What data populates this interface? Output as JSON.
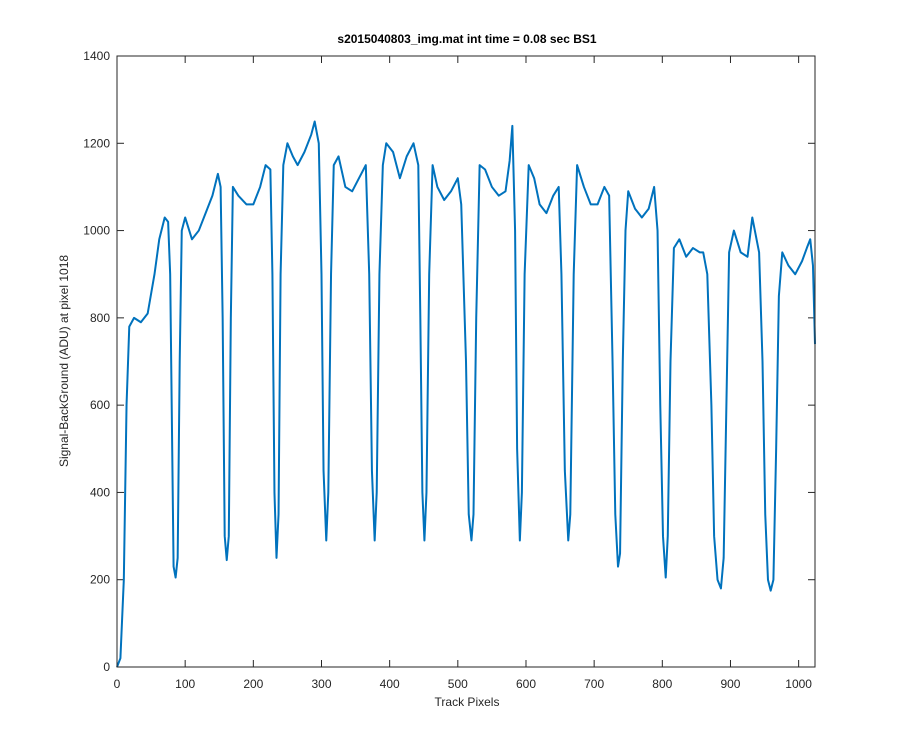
{
  "chart_data": {
    "type": "line",
    "title": "s2015040803_img.mat int time = 0.08 sec   BS1",
    "x_label": "Track Pixels",
    "y_label": "Signal-BackGround (ADU) at pixel 1018",
    "xlim": [
      0,
      1024
    ],
    "ylim": [
      0,
      1400
    ],
    "xticks": [
      0,
      100,
      200,
      300,
      400,
      500,
      600,
      700,
      800,
      900,
      1000
    ],
    "yticks": [
      0,
      200,
      400,
      600,
      800,
      1000,
      1200,
      1400
    ],
    "color": "#0072bd",
    "x": [
      0,
      5,
      10,
      14,
      18,
      25,
      35,
      45,
      55,
      62,
      70,
      75,
      78,
      81,
      83,
      86,
      89,
      92,
      95,
      100,
      110,
      120,
      130,
      140,
      148,
      152,
      155,
      158,
      161,
      164,
      167,
      170,
      178,
      190,
      200,
      210,
      218,
      225,
      228,
      231,
      234,
      237,
      240,
      244,
      250,
      258,
      265,
      275,
      285,
      290,
      296,
      300,
      303,
      307,
      310,
      314,
      318,
      325,
      335,
      345,
      355,
      365,
      370,
      374,
      378,
      381,
      385,
      390,
      395,
      405,
      415,
      425,
      435,
      442,
      445,
      448,
      451,
      454,
      458,
      463,
      470,
      480,
      490,
      500,
      505,
      512,
      516,
      520,
      523,
      527,
      532,
      540,
      550,
      560,
      570,
      576,
      580,
      584,
      587,
      591,
      594,
      598,
      604,
      612,
      620,
      630,
      640,
      648,
      652,
      657,
      662,
      665,
      670,
      675,
      685,
      695,
      705,
      715,
      722,
      727,
      731,
      735,
      738,
      742,
      746,
      750,
      760,
      770,
      780,
      788,
      793,
      797,
      801,
      805,
      808,
      812,
      817,
      825,
      835,
      845,
      855,
      860,
      866,
      872,
      876,
      881,
      886,
      890,
      894,
      898,
      905,
      915,
      925,
      932,
      942,
      947,
      951,
      955,
      959,
      963,
      967,
      971,
      976,
      985,
      995,
      1005,
      1012,
      1017,
      1021,
      1024
    ],
    "values": [
      0,
      20,
      200,
      600,
      780,
      800,
      790,
      810,
      900,
      980,
      1030,
      1020,
      900,
      500,
      230,
      205,
      250,
      700,
      1000,
      1030,
      980,
      1000,
      1040,
      1080,
      1130,
      1100,
      800,
      300,
      245,
      300,
      800,
      1100,
      1080,
      1060,
      1060,
      1100,
      1150,
      1140,
      900,
      400,
      250,
      350,
      900,
      1150,
      1200,
      1170,
      1150,
      1180,
      1220,
      1250,
      1200,
      900,
      450,
      290,
      400,
      900,
      1150,
      1170,
      1100,
      1090,
      1120,
      1150,
      900,
      450,
      290,
      400,
      900,
      1150,
      1200,
      1180,
      1120,
      1170,
      1200,
      1150,
      800,
      400,
      290,
      400,
      900,
      1150,
      1100,
      1070,
      1090,
      1120,
      1060,
      700,
      350,
      290,
      350,
      800,
      1150,
      1140,
      1100,
      1080,
      1090,
      1160,
      1240,
      1000,
      500,
      290,
      400,
      900,
      1150,
      1120,
      1060,
      1040,
      1080,
      1100,
      900,
      450,
      290,
      350,
      900,
      1150,
      1100,
      1060,
      1060,
      1100,
      1080,
      700,
      350,
      230,
      260,
      700,
      1000,
      1090,
      1050,
      1030,
      1050,
      1100,
      1000,
      600,
      300,
      205,
      300,
      700,
      960,
      980,
      940,
      960,
      950,
      950,
      900,
      600,
      300,
      200,
      180,
      250,
      600,
      950,
      1000,
      950,
      940,
      1030,
      950,
      700,
      350,
      200,
      175,
      200,
      500,
      850,
      950,
      920,
      900,
      930,
      960,
      980,
      920,
      740
    ]
  }
}
